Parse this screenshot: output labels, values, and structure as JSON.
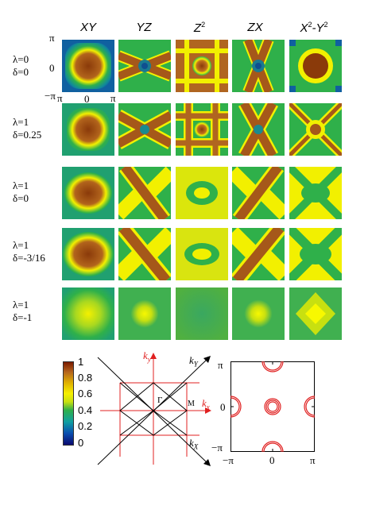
{
  "columns": [
    "XY",
    "YZ",
    "Z",
    "ZX",
    "X",
    "Y"
  ],
  "column_superscripts": {
    "z": "2",
    "x": "2",
    "y": "2"
  },
  "rows": [
    {
      "l1": "λ=0",
      "l2": "δ=0"
    },
    {
      "l1": "λ=1",
      "l2": "δ=0.25"
    },
    {
      "l1": "λ=1",
      "l2": "δ=0"
    },
    {
      "l1": "λ=1",
      "l2": "δ=-3/16"
    },
    {
      "l1": "λ=1",
      "l2": "δ=-1"
    }
  ],
  "ticks": {
    "pi": "π",
    "zero": "0",
    "mpi": "−π"
  },
  "colorbar": {
    "labels": [
      "1",
      "0.8",
      "0.6",
      "0.4",
      "0.2",
      "0"
    ]
  },
  "bz": {
    "ky": "k",
    "ky_sub": "y",
    "kY": "k",
    "kY_sub": "Y",
    "kx": "k",
    "kx_sub": "x",
    "kX": "k",
    "kX_sub": "X",
    "gamma": "Γ",
    "M": "M"
  },
  "fs": {
    "pi": "π",
    "zero": "0",
    "mpi": "−π"
  },
  "colors": {
    "red": "#e02020",
    "black": "#000000"
  }
}
